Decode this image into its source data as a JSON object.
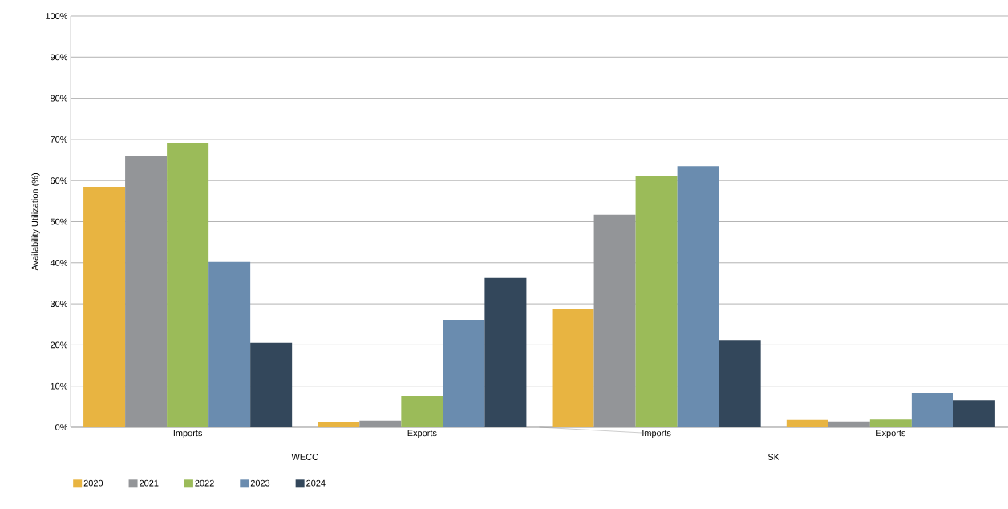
{
  "chart_data": {
    "type": "bar",
    "ylabel": "Availability Utilization (%)",
    "categories": [
      "Imports",
      "Exports",
      "Imports",
      "Exports"
    ],
    "annotations": [
      "WECC",
      "SK"
    ],
    "series": [
      {
        "name": "2020",
        "color": "#e8b441",
        "values": [
          58.5,
          1.2,
          28.8,
          1.8
        ]
      },
      {
        "name": "2021",
        "color": "#939598",
        "values": [
          66.1,
          1.6,
          51.7,
          1.4
        ]
      },
      {
        "name": "2022",
        "color": "#9bbb59",
        "values": [
          69.2,
          7.6,
          61.2,
          1.9
        ]
      },
      {
        "name": "2023",
        "color": "#6a8caf",
        "values": [
          40.2,
          26.1,
          63.5,
          8.4
        ]
      },
      {
        "name": "2024",
        "color": "#33475b",
        "values": [
          20.5,
          36.3,
          21.2,
          6.6
        ]
      }
    ],
    "ylim": [
      0,
      100
    ],
    "yticks": [
      {
        "value": 0,
        "label": "0%"
      },
      {
        "value": 10,
        "label": "10%"
      },
      {
        "value": 20,
        "label": "20%"
      },
      {
        "value": 30,
        "label": "30%"
      },
      {
        "value": 40,
        "label": "40%"
      },
      {
        "value": 50,
        "label": "50%"
      },
      {
        "value": 60,
        "label": "60%"
      },
      {
        "value": 70,
        "label": "70%"
      },
      {
        "value": 80,
        "label": "80%"
      },
      {
        "value": 90,
        "label": "90%"
      },
      {
        "value": 100,
        "label": "100%"
      }
    ],
    "grid": "y",
    "legend": "bottom left"
  }
}
